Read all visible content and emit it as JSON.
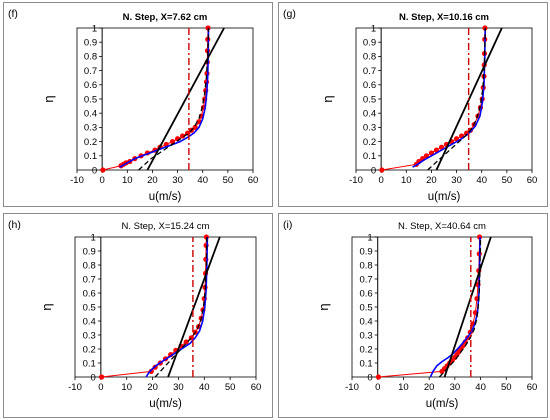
{
  "chart_data": [
    {
      "type": "line",
      "panel_label": "(f)",
      "title": "N. Step, X=7.62 cm",
      "title_bold": true,
      "xlabel": "u(m/s)",
      "ylabel": "η",
      "xlim": [
        -10,
        60
      ],
      "ylim": [
        0,
        1
      ],
      "xticks": [
        -10,
        0,
        10,
        20,
        30,
        40,
        50,
        60
      ],
      "yticks": [
        0,
        0.1,
        0.2,
        0.3,
        0.4,
        0.5,
        0.6,
        0.7,
        0.8,
        0.9,
        1
      ],
      "grid": false,
      "series": [
        {
          "style": "red-dots",
          "color": "#ff0000",
          "x": [
            0.3,
            7.5,
            8.5,
            9.5,
            11,
            13,
            15.5,
            18,
            21,
            23,
            25.5,
            28,
            30,
            32,
            34,
            35.5,
            37,
            38.5,
            39.5,
            40.3,
            40.8,
            41.2,
            41.5,
            41.7,
            41.8,
            41.9,
            42,
            42.1
          ],
          "y": [
            0,
            0.03,
            0.04,
            0.05,
            0.06,
            0.08,
            0.1,
            0.12,
            0.14,
            0.16,
            0.18,
            0.2,
            0.22,
            0.24,
            0.26,
            0.28,
            0.3,
            0.34,
            0.38,
            0.44,
            0.5,
            0.56,
            0.62,
            0.68,
            0.76,
            0.84,
            0.92,
            1.0
          ]
        },
        {
          "style": "solid",
          "color": "#0000ff",
          "x": [
            7,
            9,
            11,
            13,
            16,
            19,
            22,
            25,
            28,
            31,
            34,
            36.5,
            38.5,
            40,
            41,
            41.6,
            42,
            42.2,
            42.3
          ],
          "y": [
            0.02,
            0.04,
            0.06,
            0.08,
            0.1,
            0.12,
            0.14,
            0.16,
            0.18,
            0.2,
            0.23,
            0.26,
            0.3,
            0.36,
            0.44,
            0.54,
            0.66,
            0.82,
            1.0
          ]
        },
        {
          "style": "dashed",
          "color": "#000000",
          "x": [
            14.5,
            17,
            19.5,
            22,
            24.5,
            27,
            29.5,
            32,
            34.5,
            36.5,
            38.5,
            39.8,
            40.8,
            41.5,
            42,
            42.3
          ],
          "y": [
            0.0,
            0.04,
            0.08,
            0.11,
            0.14,
            0.17,
            0.2,
            0.23,
            0.26,
            0.3,
            0.36,
            0.44,
            0.54,
            0.66,
            0.82,
            1.0
          ]
        },
        {
          "style": "solid-thick",
          "color": "#000000",
          "x": [
            18,
            48.5
          ],
          "y": [
            0.0,
            1.0
          ]
        },
        {
          "style": "dashdot",
          "color": "#cc0000",
          "x": [
            34.5,
            34.5
          ],
          "y": [
            0.0,
            1.0
          ]
        }
      ]
    },
    {
      "type": "line",
      "panel_label": "(g)",
      "title": "N. Step, X=10.16 cm",
      "title_bold": true,
      "xlabel": "u(m/s)",
      "ylabel": "η",
      "xlim": [
        -10,
        60
      ],
      "ylim": [
        0,
        1
      ],
      "xticks": [
        -10,
        0,
        10,
        20,
        30,
        40,
        50,
        60
      ],
      "yticks": [
        0,
        0.1,
        0.2,
        0.3,
        0.4,
        0.5,
        0.6,
        0.7,
        0.8,
        0.9,
        1
      ],
      "grid": false,
      "series": [
        {
          "style": "red-dots",
          "color": "#ff0000",
          "x": [
            0.3,
            14,
            15,
            16.5,
            18,
            20,
            22,
            24,
            26,
            28,
            30,
            32,
            34,
            35.5,
            37,
            38.5,
            39.5,
            40.2,
            40.6,
            40.9,
            41,
            41.1,
            41.2,
            41.3
          ],
          "y": [
            0,
            0.04,
            0.06,
            0.08,
            0.1,
            0.12,
            0.14,
            0.16,
            0.18,
            0.2,
            0.22,
            0.24,
            0.26,
            0.28,
            0.32,
            0.38,
            0.44,
            0.5,
            0.58,
            0.66,
            0.74,
            0.82,
            0.92,
            1.0
          ]
        },
        {
          "style": "solid",
          "color": "#0000ff",
          "x": [
            12.5,
            14.5,
            17,
            20,
            23,
            26,
            29,
            32,
            35,
            37.5,
            39.3,
            40.3,
            40.9,
            41.2,
            41.4
          ],
          "y": [
            0.02,
            0.04,
            0.07,
            0.1,
            0.13,
            0.16,
            0.19,
            0.22,
            0.26,
            0.31,
            0.38,
            0.48,
            0.6,
            0.78,
            1.0
          ]
        },
        {
          "style": "dashed",
          "color": "#000000",
          "x": [
            18.5,
            21,
            23.5,
            26,
            28.5,
            31,
            33.5,
            36,
            38,
            39.5,
            40.5,
            41.1,
            41.4
          ],
          "y": [
            0.0,
            0.04,
            0.08,
            0.12,
            0.16,
            0.2,
            0.24,
            0.29,
            0.36,
            0.46,
            0.58,
            0.76,
            1.0
          ]
        },
        {
          "style": "solid-thick",
          "color": "#000000",
          "x": [
            22,
            48
          ],
          "y": [
            0.0,
            1.0
          ]
        },
        {
          "style": "dashdot",
          "color": "#cc0000",
          "x": [
            34.8,
            34.8
          ],
          "y": [
            0.0,
            1.0
          ]
        }
      ]
    },
    {
      "type": "line",
      "panel_label": "(h)",
      "title": "N. Step, X=15.24 cm",
      "title_bold": false,
      "xlabel": "u(m/s)",
      "ylabel": "η",
      "xlim": [
        -10,
        60
      ],
      "ylim": [
        0,
        1
      ],
      "xticks": [
        -10,
        0,
        10,
        20,
        30,
        40,
        50,
        60
      ],
      "yticks": [
        0,
        0.1,
        0.2,
        0.3,
        0.4,
        0.5,
        0.6,
        0.7,
        0.8,
        0.9,
        1
      ],
      "grid": false,
      "series": [
        {
          "style": "red-dots",
          "color": "#ff0000",
          "x": [
            0.3,
            19.5,
            21,
            23,
            25,
            27,
            29,
            31,
            33,
            35,
            36.5,
            37.8,
            38.8,
            39.5,
            40,
            40.3,
            40.5,
            40.6,
            40.7,
            40.8
          ],
          "y": [
            0,
            0.04,
            0.07,
            0.1,
            0.13,
            0.16,
            0.19,
            0.22,
            0.25,
            0.28,
            0.32,
            0.36,
            0.42,
            0.48,
            0.56,
            0.64,
            0.74,
            0.84,
            0.94,
            1.0
          ]
        },
        {
          "style": "solid",
          "color": "#0000ff",
          "x": [
            17.5,
            18.5,
            20,
            22,
            24.5,
            27,
            29.5,
            32,
            34.5,
            36.5,
            38.2,
            39.4,
            40.2,
            40.7,
            41,
            41.2
          ],
          "y": [
            0.0,
            0.03,
            0.06,
            0.09,
            0.12,
            0.15,
            0.18,
            0.21,
            0.24,
            0.28,
            0.33,
            0.4,
            0.5,
            0.62,
            0.8,
            1.0
          ]
        },
        {
          "style": "dashed",
          "color": "#000000",
          "x": [
            21,
            23,
            25,
            27,
            29,
            31,
            33,
            35,
            37,
            38.6,
            39.7,
            40.4,
            40.8,
            41
          ],
          "y": [
            0.0,
            0.04,
            0.08,
            0.12,
            0.16,
            0.2,
            0.24,
            0.28,
            0.33,
            0.4,
            0.5,
            0.62,
            0.8,
            1.0
          ]
        },
        {
          "style": "solid-thick",
          "color": "#000000",
          "x": [
            26,
            46
          ],
          "y": [
            0.0,
            1.0
          ]
        },
        {
          "style": "dashdot",
          "color": "#cc0000",
          "x": [
            35.6,
            35.6
          ],
          "y": [
            0.0,
            1.0
          ]
        }
      ]
    },
    {
      "type": "line",
      "panel_label": "(i)",
      "title": "N. Step, X=40.64 cm",
      "title_bold": false,
      "xlabel": "u(m/s)",
      "ylabel": "η",
      "xlim": [
        -10,
        60
      ],
      "ylim": [
        0,
        1
      ],
      "xticks": [
        -10,
        0,
        10,
        20,
        30,
        40,
        50,
        60
      ],
      "yticks": [
        0,
        0.1,
        0.2,
        0.3,
        0.4,
        0.5,
        0.6,
        0.7,
        0.8,
        0.9,
        1
      ],
      "grid": false,
      "series": [
        {
          "style": "red-dots",
          "color": "#ff0000",
          "x": [
            0.3,
            25,
            26,
            27,
            28,
            29,
            30,
            30.8,
            31.5,
            32.2,
            33,
            34,
            35,
            36,
            37,
            38,
            38.6,
            39,
            39.3,
            39.5,
            39.6
          ],
          "y": [
            0,
            0.04,
            0.06,
            0.08,
            0.1,
            0.12,
            0.14,
            0.16,
            0.18,
            0.2,
            0.22,
            0.25,
            0.28,
            0.32,
            0.38,
            0.46,
            0.56,
            0.66,
            0.76,
            0.88,
            1.0
          ]
        },
        {
          "style": "solid",
          "color": "#0000ff",
          "x": [
            20.5,
            21.5,
            23,
            25,
            27.5,
            29.5,
            31,
            32.5,
            33.8,
            35.2,
            36.6,
            37.8,
            38.8,
            39.4,
            39.8
          ],
          "y": [
            0.0,
            0.04,
            0.08,
            0.11,
            0.14,
            0.17,
            0.2,
            0.23,
            0.26,
            0.29,
            0.33,
            0.38,
            0.46,
            0.6,
            1.0
          ]
        },
        {
          "style": "dashed",
          "color": "#000000",
          "x": [
            24,
            26,
            28,
            30,
            32,
            34,
            36,
            37.5,
            38.6,
            39.3,
            39.7,
            40
          ],
          "y": [
            0.0,
            0.04,
            0.08,
            0.12,
            0.17,
            0.22,
            0.28,
            0.34,
            0.42,
            0.54,
            0.72,
            1.0
          ]
        },
        {
          "style": "solid-thick",
          "color": "#000000",
          "x": [
            26,
            44
          ],
          "y": [
            0.0,
            1.0
          ]
        },
        {
          "style": "dashdot",
          "color": "#cc0000",
          "x": [
            36.2,
            36.2
          ],
          "y": [
            0.0,
            1.0
          ]
        }
      ]
    }
  ]
}
